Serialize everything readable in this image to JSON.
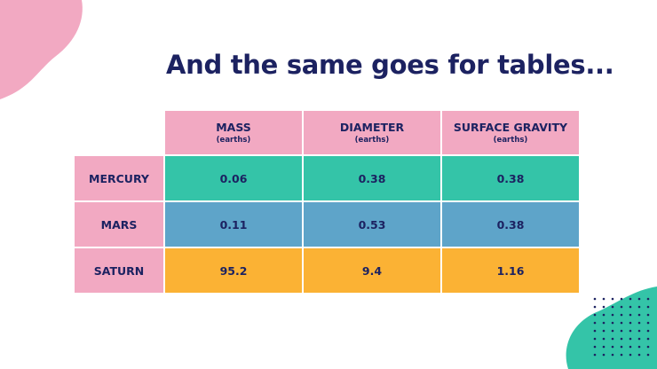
{
  "slide": {
    "title": "And the same goes for tables...",
    "colors": {
      "title": "#1c2261",
      "header_pink": "#f2a9c2",
      "row_green": "#34c4a8",
      "row_blue": "#5ea4c9",
      "row_orange": "#fbb234",
      "blob_pink": "#f2a9c2",
      "blob_teal": "#34c4a8"
    }
  },
  "table": {
    "columns": [
      {
        "name": "MASS",
        "unit": "(earths)"
      },
      {
        "name": "DIAMETER",
        "unit": "(earths)"
      },
      {
        "name": "SURFACE GRAVITY",
        "unit": "(earths)"
      }
    ],
    "rows": [
      {
        "label": "MERCURY",
        "values": [
          "0.06",
          "0.38",
          "0.38"
        ],
        "color": "#34c4a8"
      },
      {
        "label": "MARS",
        "values": [
          "0.11",
          "0.53",
          "0.38"
        ],
        "color": "#5ea4c9"
      },
      {
        "label": "SATURN",
        "values": [
          "95.2",
          "9.4",
          "1.16"
        ],
        "color": "#fbb234"
      }
    ]
  }
}
